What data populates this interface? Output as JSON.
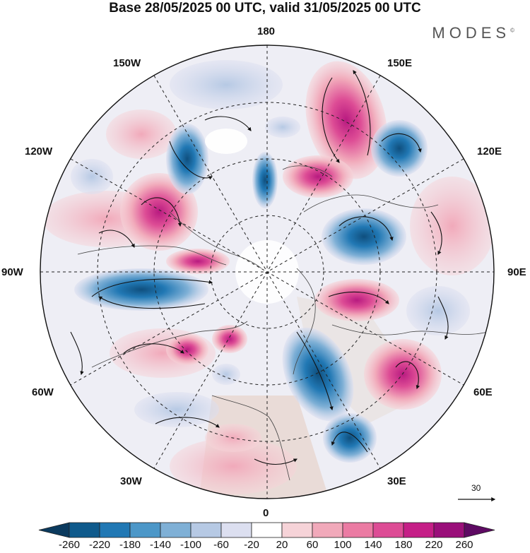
{
  "title": "Base 28/05/2025 00 UTC, valid 31/05/2025 00 UTC",
  "brand": "MODES",
  "brand_mark": "©",
  "longitude_labels": {
    "top": "180",
    "bottom": "0",
    "left": "90W",
    "right": "90E",
    "upper_left_1": "150W",
    "upper_left_2": "120W",
    "upper_right_1": "150E",
    "upper_right_2": "120E",
    "lower_left_1": "60W",
    "lower_left_2": "30W",
    "lower_right_1": "60E",
    "lower_right_2": "30E"
  },
  "wind_scale": {
    "value": "30"
  },
  "colorbar": {
    "ticks": [
      "-260",
      "-220",
      "-180",
      "-140",
      "-100",
      "-60",
      "-20",
      "20",
      "60",
      "100",
      "140",
      "180",
      "220",
      "260"
    ],
    "colors": [
      "#0b3a5e",
      "#0f5a8c",
      "#2178b4",
      "#4c97c8",
      "#7fb0d6",
      "#b6c9e4",
      "#dcdff0",
      "#ffffff",
      "#f6d3d8",
      "#f1a9ba",
      "#eb7ba3",
      "#dd4c95",
      "#c51f87",
      "#9a0f7a",
      "#5e0a63"
    ]
  },
  "colors": {
    "blue_anomaly": "#2f7cb4",
    "pink_anomaly": "#e05a9b",
    "land": "#d8c8bf",
    "frame": "#111111"
  }
}
